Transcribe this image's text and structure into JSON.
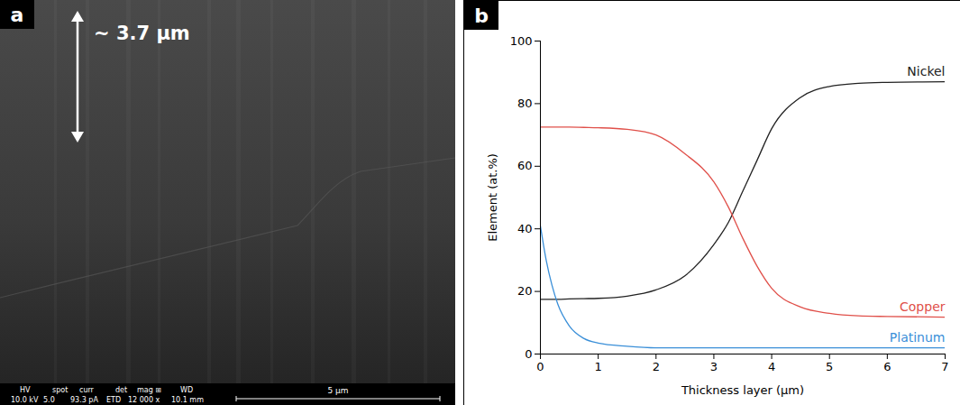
{
  "image_panel": {
    "letter": "a",
    "annotation": "~ 3.7 µm",
    "info_bar": {
      "headers": [
        "HV",
        "spot",
        "curr",
        "det",
        "mag ⊞",
        "WD"
      ],
      "values": [
        "10.0 kV",
        "5.0",
        "93.3 pA",
        "ETD",
        "12 000 x",
        "10.1 mm"
      ],
      "scale_bar": "5 µm"
    }
  },
  "chart_data": {
    "type": "line",
    "letter": "b",
    "x_label": "Thickness layer (µm)",
    "y_label": "Element (at.%)",
    "x": [
      0,
      0.1,
      0.2,
      0.3,
      0.5,
      0.75,
      1,
      1.5,
      2,
      2.5,
      3,
      3.25,
      3.5,
      3.75,
      4,
      4.5,
      5,
      5.5,
      6,
      7
    ],
    "series": [
      {
        "name": "Nickel",
        "color": "#222222",
        "values": [
          17.5,
          17.5,
          17.5,
          17.5,
          17.6,
          17.7,
          17.8,
          18.5,
          20.5,
          25,
          35,
          42,
          52,
          62,
          72,
          82,
          85.5,
          86.5,
          86.8,
          87
        ]
      },
      {
        "name": "Copper",
        "color": "#e0504a",
        "values": [
          72.5,
          72.5,
          72.5,
          72.5,
          72.5,
          72.4,
          72.3,
          71.8,
          70,
          64,
          55,
          47,
          37,
          28,
          21,
          15,
          13,
          12.2,
          12,
          11.8
        ]
      },
      {
        "name": "Platinum",
        "color": "#3a8fd8",
        "values": [
          41,
          30,
          22,
          16,
          9,
          5,
          3.5,
          2.5,
          2,
          2,
          2,
          2,
          2,
          2,
          2,
          2,
          2,
          2,
          2,
          2
        ]
      }
    ],
    "xlim": [
      0,
      7
    ],
    "xticks": [
      0,
      1,
      2,
      3,
      4,
      5,
      6,
      7
    ],
    "ylim": [
      0,
      100
    ],
    "yticks": [
      0,
      20,
      40,
      60,
      80,
      100
    ],
    "grid": false
  }
}
